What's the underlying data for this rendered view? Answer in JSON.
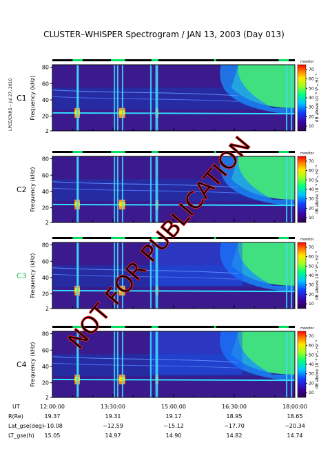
{
  "title": "CLUSTER–WHISPER Spectrogram / JAN 13, 2003 (Day 013)",
  "side_note": "LPCE/CNRS – Jul 27, 2010",
  "watermark": "NOT FOR PUBLICATION",
  "chart_data": {
    "type": "heatmap",
    "ylabel": "Frequency (kHz)",
    "yticks": [
      2,
      20,
      40,
      60,
      80
    ],
    "ylim": [
      2,
      83
    ],
    "xlim": [
      "12:00:00",
      "18:00:00"
    ],
    "panels": [
      {
        "name": "C1",
        "color": "#000000"
      },
      {
        "name": "C2",
        "color": "#000000"
      },
      {
        "name": "C3",
        "color": "#22bb44"
      },
      {
        "name": "C4",
        "color": "#000000"
      }
    ],
    "colorbar": {
      "label": "dB above 10⁻⁸ V²ₘ Hz⁻¹",
      "ticks": [
        10,
        20,
        30,
        40,
        50,
        60,
        70
      ],
      "range": [
        5,
        75
      ],
      "mode_label": "monitor"
    },
    "orbit_table": {
      "row_labels": [
        "UT",
        "R(Re)",
        "Lat_gse(deg)",
        "LT_gse(h)"
      ],
      "columns": [
        [
          "12:00:00",
          "19.37",
          "−10.08",
          "15.05"
        ],
        [
          "13:30:00",
          "19.31",
          "−12.59",
          "14.97"
        ],
        [
          "15:00:00",
          "19.17",
          "−15.12",
          "14.90"
        ],
        [
          "16:30:00",
          "18.95",
          "−17.70",
          "14.82"
        ],
        [
          "18:00:00",
          "18.65",
          "−20.34",
          "14.74"
        ]
      ]
    }
  }
}
